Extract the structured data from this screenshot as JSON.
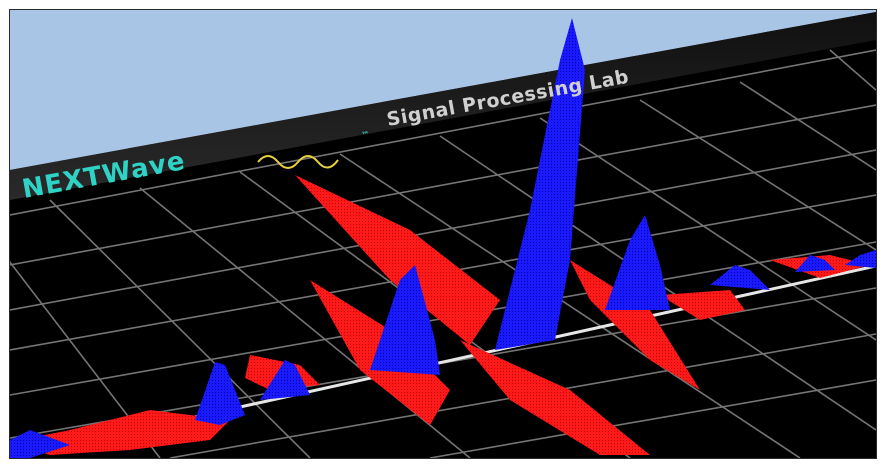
{
  "app": {
    "brand_name": "NEXTWave",
    "brand_trademark": "™",
    "subtitle": "Signal Processing Lab"
  },
  "colors": {
    "sky": "#a9c5e6",
    "panel_background": "#000000",
    "grid_lines": "#8a8a8a",
    "brand_text": "#2ed3c6",
    "wave_logo_line": "#e8d23a",
    "subtitle_text": "#d0d0d0",
    "real_component": "#ff1a1a",
    "imaginary_component": "#1a1aff"
  },
  "icons": {
    "logo_wave": "wave-logo-icon"
  }
}
